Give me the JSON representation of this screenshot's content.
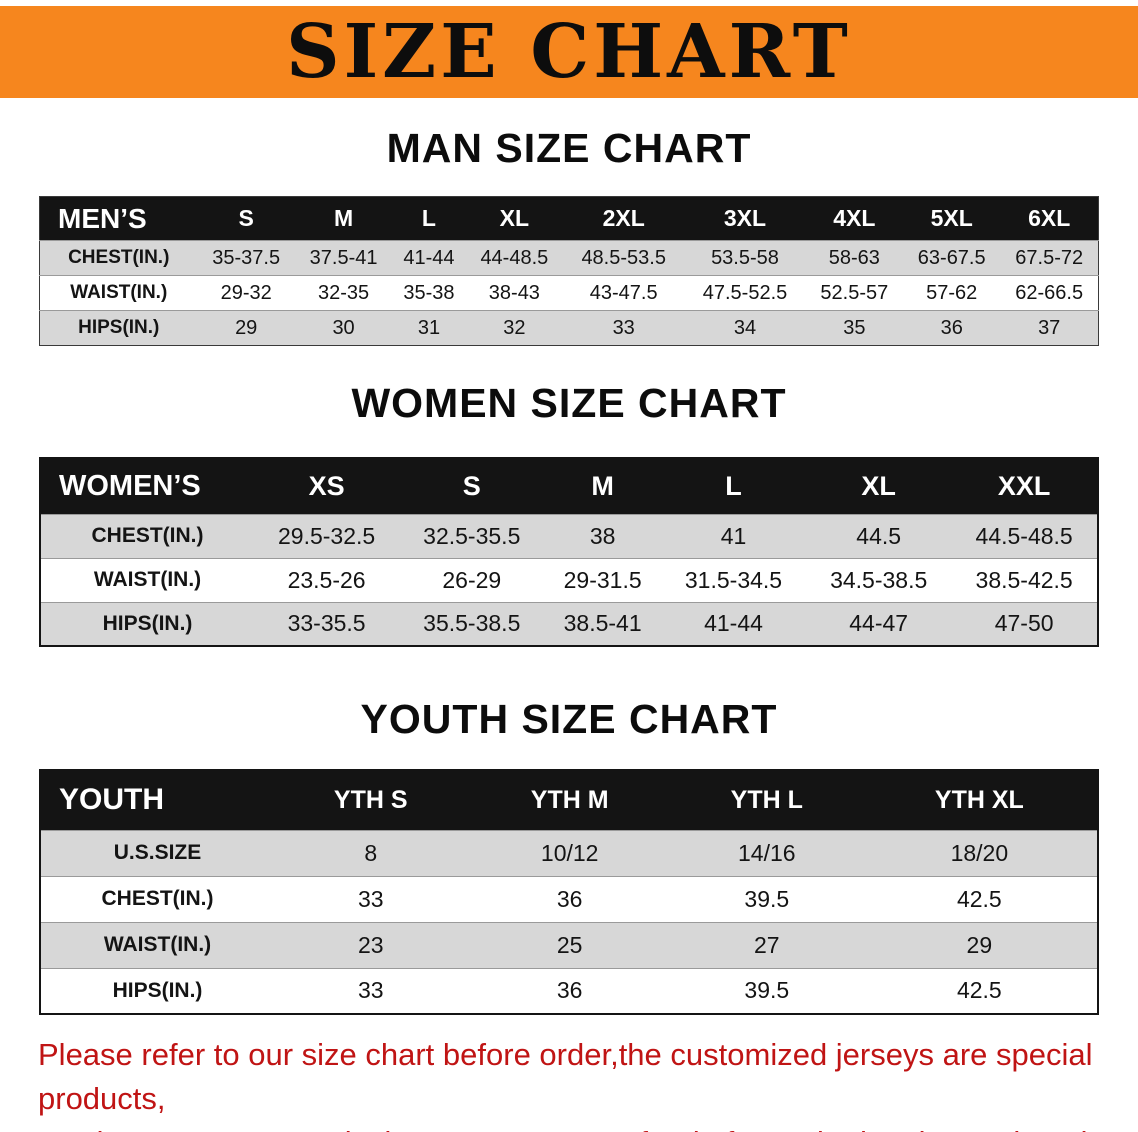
{
  "banner": {
    "title": "SIZE CHART",
    "bg_color": "#F6861E"
  },
  "sections": {
    "men": {
      "heading": "MAN SIZE CHART",
      "table": {
        "header": [
          "MEN’S",
          "S",
          "M",
          "L",
          "XL",
          "2XL",
          "3XL",
          "4XL",
          "5XL",
          "6XL"
        ],
        "rows": [
          [
            "CHEST(IN.)",
            "35-37.5",
            "37.5-41",
            "41-44",
            "44-48.5",
            "48.5-53.5",
            "53.5-58",
            "58-63",
            "63-67.5",
            "67.5-72"
          ],
          [
            "WAIST(IN.)",
            "29-32",
            "32-35",
            "35-38",
            "38-43",
            "43-47.5",
            "47.5-52.5",
            "52.5-57",
            "57-62",
            "62-66.5"
          ],
          [
            "HIPS(IN.)",
            "29",
            "30",
            "31",
            "32",
            "33",
            "34",
            "35",
            "36",
            "37"
          ]
        ]
      }
    },
    "women": {
      "heading": "WOMEN SIZE CHART",
      "table": {
        "header": [
          "WOMEN’S",
          "XS",
          "S",
          "M",
          "L",
          "XL",
          "XXL"
        ],
        "rows": [
          [
            "CHEST(IN.)",
            "29.5-32.5",
            "32.5-35.5",
            "38",
            "41",
            "44.5",
            "44.5-48.5"
          ],
          [
            "WAIST(IN.)",
            "23.5-26",
            "26-29",
            "29-31.5",
            "31.5-34.5",
            "34.5-38.5",
            "38.5-42.5"
          ],
          [
            "HIPS(IN.)",
            "33-35.5",
            "35.5-38.5",
            "38.5-41",
            "41-44",
            "44-47",
            "47-50"
          ]
        ]
      }
    },
    "youth": {
      "heading": "YOUTH SIZE CHART",
      "table": {
        "header": [
          "YOUTH",
          "YTH S",
          "YTH M",
          "YTH L",
          "YTH XL"
        ],
        "rows": [
          [
            "U.S.SIZE",
            "8",
            "10/12",
            "14/16",
            "18/20"
          ],
          [
            "CHEST(IN.)",
            "33",
            "36",
            "39.5",
            "42.5"
          ],
          [
            "WAIST(IN.)",
            "23",
            "25",
            "27",
            "29"
          ],
          [
            "HIPS(IN.)",
            "33",
            "36",
            "39.5",
            "42.5"
          ]
        ]
      }
    }
  },
  "footer": {
    "line1": "Please refer to our size chart before order,the customized jerseys are special products,",
    "line2": "we don’t accept cancel, change, teturn or refund after order has been placed!",
    "color": "#C01414"
  }
}
